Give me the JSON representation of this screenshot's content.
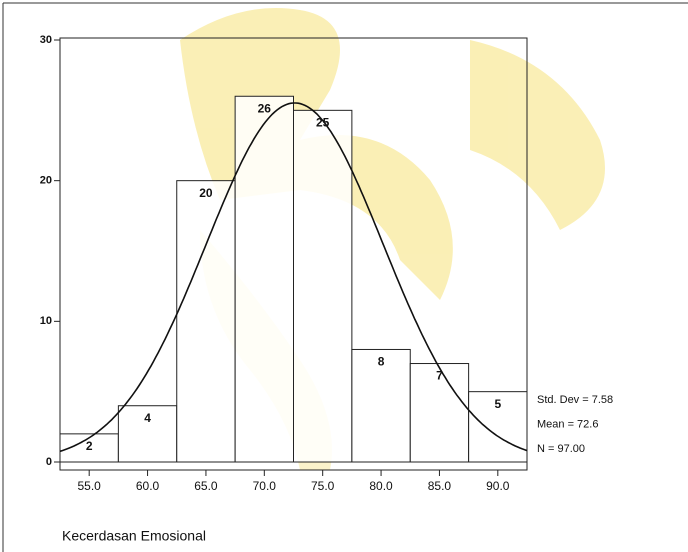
{
  "chart_data": {
    "type": "histogram",
    "x_label": "Kecerdasan Emosional",
    "bins": [
      52.5,
      57.5,
      62.5,
      67.5,
      72.5,
      77.5,
      82.5,
      87.5,
      92.5
    ],
    "values": [
      2,
      4,
      20,
      26,
      25,
      8,
      7,
      5
    ],
    "color": "#ffffff",
    "xlim": [
      52.5,
      92.5
    ],
    "xticks": [
      {
        "value": 55,
        "label": "55.0"
      },
      {
        "value": 60,
        "label": "60.0"
      },
      {
        "value": 65,
        "label": "65.0"
      },
      {
        "value": 70,
        "label": "70.0"
      },
      {
        "value": 75,
        "label": "75.0"
      },
      {
        "value": 80,
        "label": "80.0"
      },
      {
        "value": 85,
        "label": "85.0"
      },
      {
        "value": 90,
        "label": "90.0"
      }
    ],
    "ylim": [
      0,
      30
    ],
    "yticks": [
      0,
      10,
      20,
      30
    ],
    "stats": [
      {
        "value": 7.58,
        "label": "Std. Dev = 7.58"
      },
      {
        "value": 72.6,
        "label": "Mean = 72.6"
      },
      {
        "value": 97,
        "label": "N = 97.00"
      }
    ],
    "normal_curve": true
  }
}
